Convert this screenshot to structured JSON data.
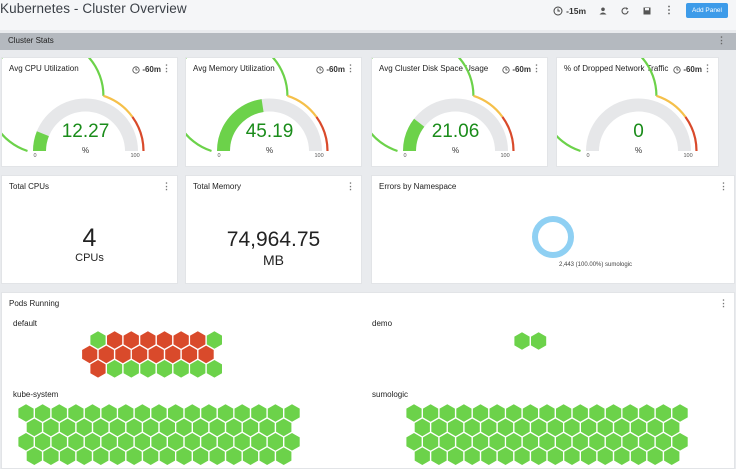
{
  "header": {
    "title": "Kubernetes - Cluster Overview",
    "time_range": "-15m",
    "add_panel_label": "Add Panel"
  },
  "section": {
    "label": "Cluster Stats"
  },
  "colors": {
    "green": "#6cd24a",
    "yellow": "#f5c04a",
    "red": "#d94a2b",
    "value_green": "#1a8c1a",
    "donut": "#8fd0f3"
  },
  "gauges": [
    {
      "title": "Avg CPU Utilization",
      "time": "-60m",
      "value": "12.27",
      "fraction": 0.1227,
      "unit": "%",
      "min": "0",
      "max": "100"
    },
    {
      "title": "Avg Memory Utilization",
      "time": "-60m",
      "value": "45.19",
      "fraction": 0.4519,
      "unit": "%",
      "min": "0",
      "max": "100"
    },
    {
      "title": "Avg Cluster Disk Space Usage",
      "time": "-60m",
      "value": "21.06",
      "fraction": 0.2106,
      "unit": "%",
      "min": "0",
      "max": "100"
    },
    {
      "title": "% of Dropped Network Traffic",
      "time": "-60m",
      "value": "0",
      "fraction": 0.0,
      "unit": "%",
      "min": "0",
      "max": "100"
    }
  ],
  "stats": [
    {
      "title": "Total CPUs",
      "value": "4",
      "unit": "CPUs"
    },
    {
      "title": "Total Memory",
      "value": "74,964.75",
      "unit": "MB"
    }
  ],
  "errors_panel": {
    "title": "Errors by Namespace",
    "slice_label": "2,443 (100.00%) sumologic"
  },
  "pods_panel": {
    "title": "Pods Running",
    "namespaces": [
      {
        "name": "default",
        "rows": [
          "GRRRRRRG",
          "RRRRRRRR",
          "RGGGGGGG"
        ]
      },
      {
        "name": "demo",
        "rows": [
          "GG"
        ]
      },
      {
        "name": "kube-system",
        "rows": [
          "GGGGGGGGGGGGGGGGG",
          "GGGGGGGGGGGGGGGG",
          "GGGGGGGGGGGGGGGGG",
          "GGGGGGGGGGGGGGGG"
        ]
      },
      {
        "name": "sumologic",
        "rows": [
          "GGGGGGGGGGGGGGGGG",
          "GGGGGGGGGGGGGGGG",
          "GGGGGGGGGGGGGGGGG",
          "GGGGGGGGGGGGGGGG"
        ]
      }
    ]
  }
}
